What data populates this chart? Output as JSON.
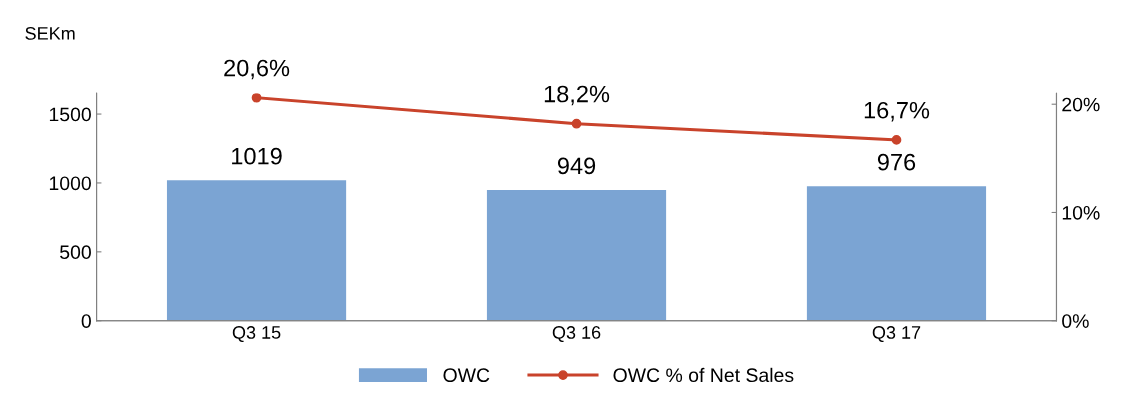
{
  "chart_data": {
    "type": "bar",
    "ylabel": "SEKm",
    "categories": [
      "Q3 15",
      "Q3 16",
      "Q3 17"
    ],
    "series": [
      {
        "name": "OWC",
        "color": "#7ba4d3",
        "values": [
          1019,
          949,
          976
        ],
        "value_labels": [
          "1019",
          "949",
          "976"
        ]
      },
      {
        "name": "OWC % of Net Sales",
        "type": "line",
        "axis": "y2",
        "color": "#c9432b",
        "values": [
          20.6,
          18.2,
          16.7
        ],
        "value_labels": [
          "20,6%",
          "18,2%",
          "16,7%"
        ]
      }
    ],
    "ylim": [
      0,
      1650
    ],
    "yticks": [
      0,
      500,
      1000,
      1500
    ],
    "y2lim": [
      0,
      21
    ],
    "y2ticks": [
      {
        "value": 0,
        "label": "0%"
      },
      {
        "value": 10,
        "label": "10%"
      },
      {
        "value": 20,
        "label": "20%"
      }
    ],
    "marker": "circle",
    "line_style": "solid",
    "grid": false,
    "legend": "bottom"
  }
}
